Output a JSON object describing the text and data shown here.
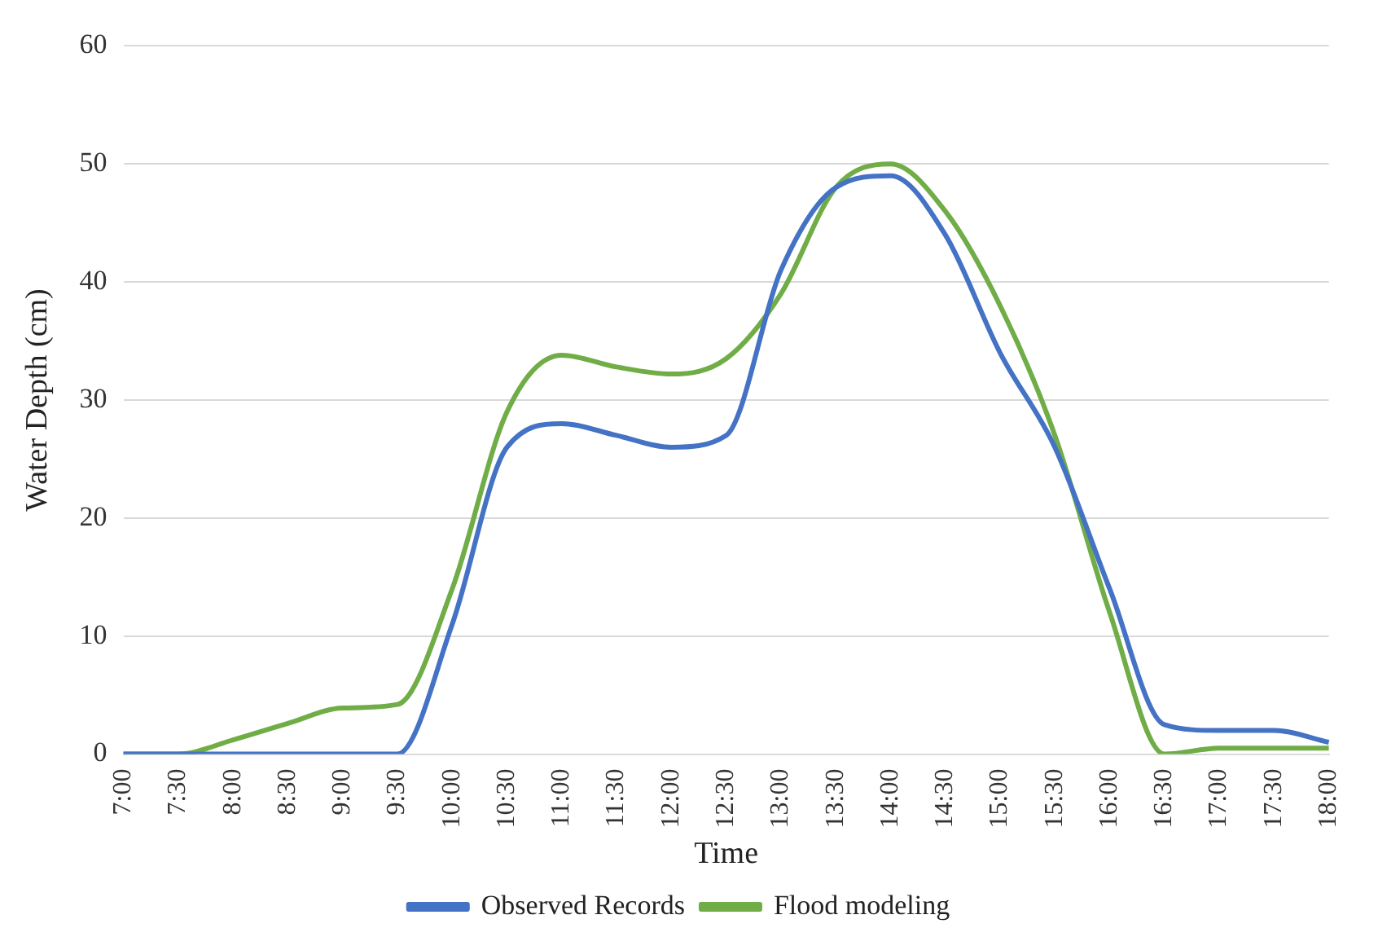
{
  "chart_data": {
    "type": "line",
    "xlabel": "Time",
    "ylabel": "Water Depth (cm)",
    "categories": [
      "7:00",
      "7:30",
      "8:00",
      "8:30",
      "9:00",
      "9:30",
      "10:00",
      "10:30",
      "11:00",
      "11:30",
      "12:00",
      "12:30",
      "13:00",
      "13:30",
      "14:00",
      "14:30",
      "15:00",
      "15:30",
      "16:00",
      "16:30",
      "17:00",
      "17:30",
      "18:00"
    ],
    "series": [
      {
        "name": "Observed Records",
        "color": "#4472c4",
        "values": [
          0,
          0,
          0,
          0,
          0,
          0,
          11,
          26,
          28,
          27,
          26,
          27,
          41,
          48,
          49,
          44,
          34,
          26,
          14,
          2.5,
          2,
          2,
          1
        ]
      },
      {
        "name": "Flood modeling",
        "color": "#70ad47",
        "values": [
          0,
          0,
          1.2,
          2.6,
          3.9,
          4.2,
          14,
          29,
          33.8,
          32.8,
          32.2,
          33.5,
          39,
          48,
          50,
          46,
          38,
          27,
          12,
          0,
          0.5,
          0.5,
          0.5
        ]
      }
    ],
    "ylim": [
      0,
      60
    ],
    "yticks": [
      0,
      10,
      20,
      30,
      40,
      50,
      60
    ],
    "grid": "y",
    "legend": "bottom",
    "marker": "none",
    "line_style": "solid"
  }
}
